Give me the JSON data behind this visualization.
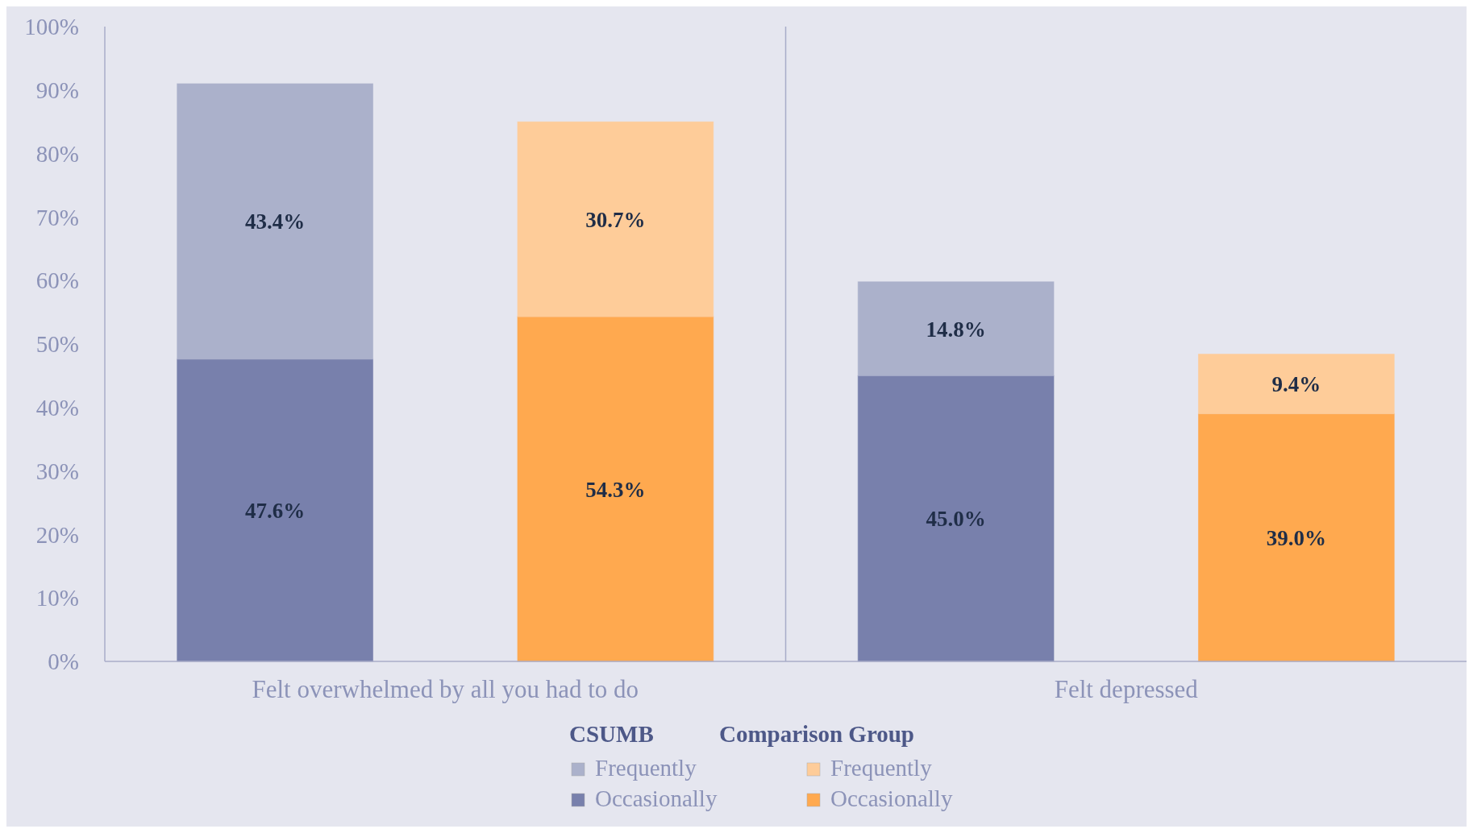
{
  "chart_data": {
    "type": "bar",
    "stacked": true,
    "categories": [
      null,
      null,
      null,
      null
    ],
    "series": [
      {
        "name": "Occasionally",
        "colors": [
          "#7880ac",
          "#ffa94f",
          "#7880ac",
          "#ffa94f"
        ],
        "values": [
          47.6,
          54.3,
          45.0,
          39.0
        ]
      },
      {
        "name": "Frequently",
        "colors": [
          "#abb1cb",
          "#fecc99",
          "#abb1cb",
          "#fecc99"
        ],
        "values": [
          43.4,
          30.7,
          14.8,
          9.4
        ]
      }
    ],
    "ylim": [
      0,
      100
    ],
    "yticks": [
      {
        "value": 0,
        "label": "0%"
      },
      {
        "value": 10,
        "label": "10%"
      },
      {
        "value": 20,
        "label": "20%"
      },
      {
        "value": 30,
        "label": "30%"
      },
      {
        "value": 40,
        "label": "40%"
      },
      {
        "value": 50,
        "label": "50%"
      },
      {
        "value": 60,
        "label": "60%"
      },
      {
        "value": 70,
        "label": "70%"
      },
      {
        "value": 80,
        "label": "80%"
      },
      {
        "value": 90,
        "label": "90%"
      },
      {
        "value": 100,
        "label": "100%"
      }
    ],
    "value_labels": [
      [
        "47.6%",
        "54.3%",
        "45.0%",
        "39.0%"
      ],
      [
        "43.4%",
        "30.7%",
        "14.8%",
        "9.4%"
      ]
    ],
    "annotations": [
      "Felt overwhelmed by all you had to do",
      "Felt depressed",
      "CSUMB",
      "Comparison Group"
    ],
    "legend": "bottom"
  }
}
